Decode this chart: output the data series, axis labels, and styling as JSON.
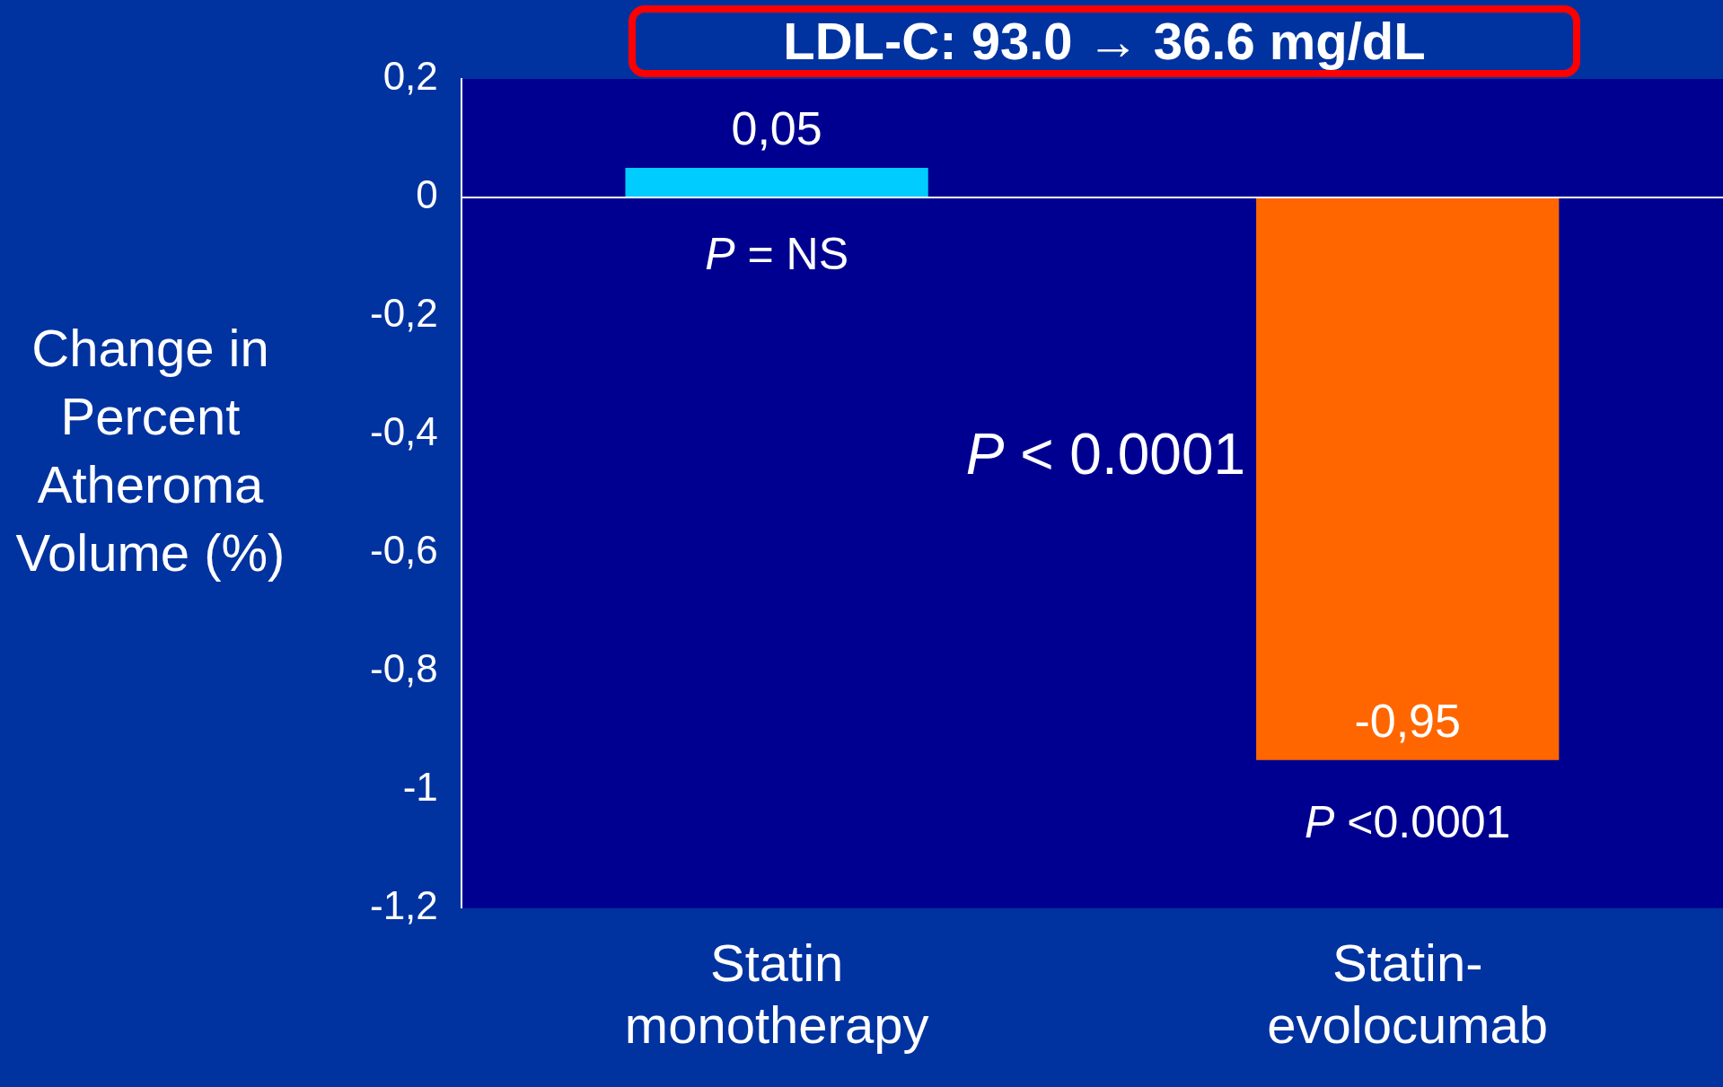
{
  "chart_data": {
    "type": "bar",
    "title": "LDL-C: 93.0 → 36.6 mg/dL",
    "ylabel": "Change in Percent Atheroma Volume (%)",
    "categories": [
      "Statin monotherapy",
      "Statin-evolocumab"
    ],
    "values": [
      0.05,
      -0.95
    ],
    "colors": [
      "#00ccff",
      "#ff6600"
    ],
    "value_labels": [
      "0,05",
      "-0,95"
    ],
    "ylim": [
      -1.2,
      0.2
    ],
    "yticks": [
      {
        "value": 0.2,
        "label": "0,2"
      },
      0,
      {
        "value": -0.2,
        "label": "-0,2"
      },
      {
        "value": -0.4,
        "label": "-0,4"
      },
      {
        "value": -0.6,
        "label": "-0,6"
      },
      {
        "value": -0.8,
        "label": "-0,8"
      },
      -1,
      {
        "value": -1.2,
        "label": "-1,2"
      }
    ],
    "annotations": [
      "P = NS",
      "P < 0.0001",
      "P <0.0001"
    ]
  }
}
